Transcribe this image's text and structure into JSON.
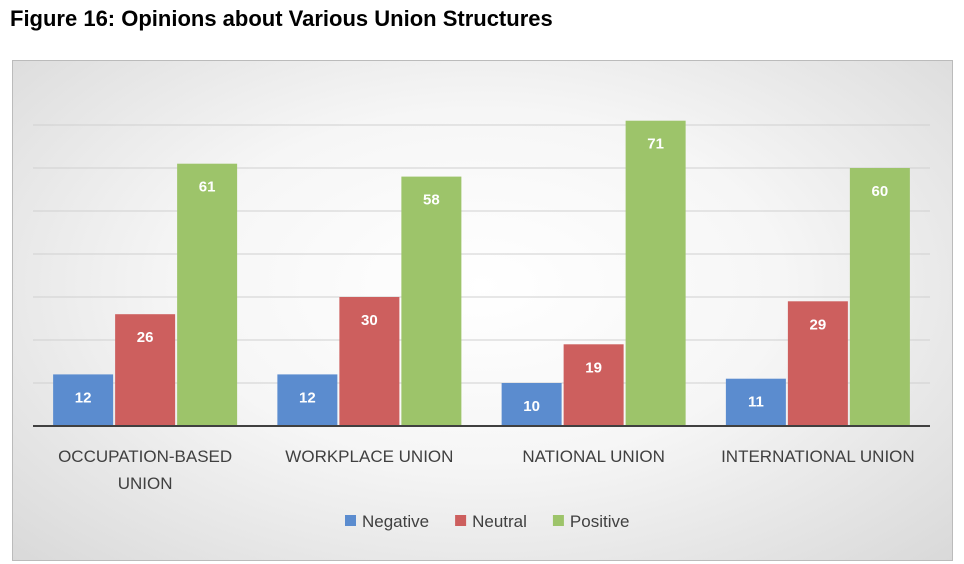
{
  "chart_data": {
    "type": "bar",
    "title": "Figure 16: Opinions about Various Union Structures",
    "categories": [
      [
        "OCCUPATION-BASED",
        "UNION"
      ],
      [
        "WORKPLACE UNION"
      ],
      [
        "NATIONAL UNION"
      ],
      [
        "INTERNATIONAL UNION"
      ]
    ],
    "series": [
      {
        "name": "Negative",
        "color": "#5b8ccf",
        "values": [
          12,
          12,
          10,
          11
        ]
      },
      {
        "name": "Neutral",
        "color": "#cd5f5e",
        "values": [
          26,
          30,
          19,
          29
        ]
      },
      {
        "name": "Positive",
        "color": "#9dc46a",
        "values": [
          61,
          58,
          71,
          60
        ]
      }
    ],
    "ylim": [
      0,
      80
    ],
    "gridlines": [
      10,
      20,
      30,
      40,
      50,
      60,
      70
    ],
    "legend": "bottom",
    "xlabel": "",
    "ylabel": ""
  }
}
